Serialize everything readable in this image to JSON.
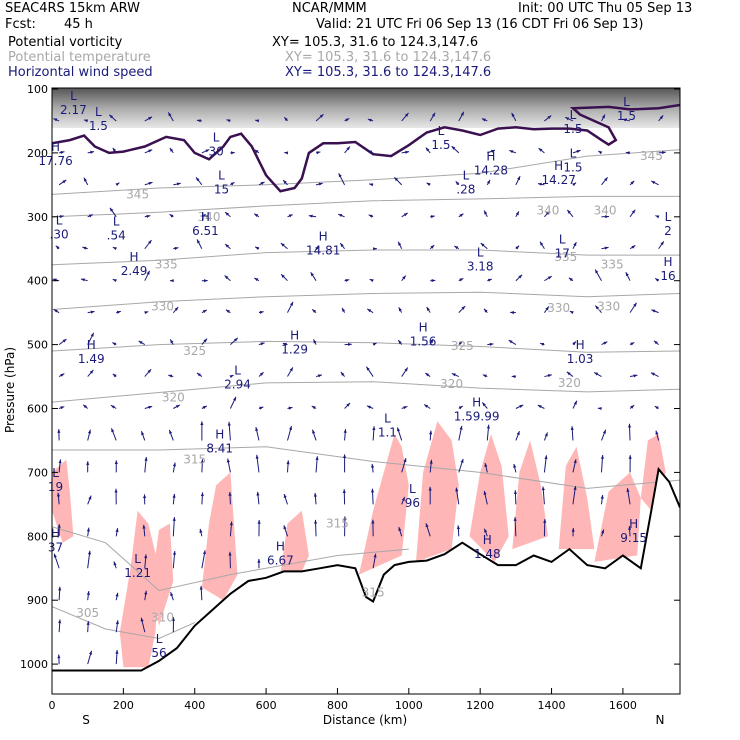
{
  "header": {
    "model": "SEAC4RS 15km ARW",
    "org": "NCAR/MMM",
    "init": "Init: 00 UTC Thu 05 Sep 13",
    "fcst_label": "Fcst:",
    "fcst_value": "45 h",
    "valid": "Valid: 21 UTC Fri 06 Sep 13 (16 CDT Fri 06 Sep 13)"
  },
  "fields": [
    {
      "name": "Potential vorticity",
      "xy": "XY= 105.3, 31.6 to 124.3,147.6",
      "color": "#000000"
    },
    {
      "name": "Potential temperature",
      "xy": "XY= 105.3, 31.6 to 124.3,147.6",
      "color": "#a8a8a8"
    },
    {
      "name": "Horizontal wind speed",
      "xy": "XY= 105.3, 31.6 to 124.3,147.6",
      "color": "#1a1a7a"
    }
  ],
  "colors": {
    "theta": "#a8a8a8",
    "pv_fill": "#ffb6b6",
    "pv_line": "#3a1050",
    "wind": "#1a1a7a",
    "terrain": "#000000"
  },
  "chart_data": {
    "type": "cross-section",
    "xlabel": "Distance (km)",
    "ylabel": "Pressure (hPa)",
    "xlim": [
      0,
      1760
    ],
    "ylim": [
      1050,
      100
    ],
    "x_ticks": [
      0,
      200,
      400,
      600,
      800,
      1000,
      1200,
      1400,
      1600
    ],
    "x_tick_labels": [
      "0",
      "200",
      "400",
      "600",
      "800",
      "1000",
      "1200",
      "1400",
      "1600"
    ],
    "y_ticks": [
      100,
      200,
      300,
      400,
      500,
      600,
      700,
      800,
      900,
      1000
    ],
    "y_tick_labels": [
      "100",
      "200",
      "300",
      "400",
      "500",
      "600",
      "700",
      "800",
      "900",
      "1000"
    ],
    "left_end_label": "S",
    "right_end_label": "N",
    "terrain": [
      [
        0,
        1010
      ],
      [
        50,
        1010
      ],
      [
        100,
        1010
      ],
      [
        200,
        1010
      ],
      [
        250,
        1010
      ],
      [
        300,
        995
      ],
      [
        350,
        975
      ],
      [
        400,
        940
      ],
      [
        450,
        915
      ],
      [
        500,
        890
      ],
      [
        550,
        870
      ],
      [
        600,
        865
      ],
      [
        650,
        855
      ],
      [
        700,
        855
      ],
      [
        750,
        850
      ],
      [
        800,
        845
      ],
      [
        850,
        850
      ],
      [
        880,
        895
      ],
      [
        900,
        902
      ],
      [
        930,
        860
      ],
      [
        960,
        845
      ],
      [
        1000,
        840
      ],
      [
        1050,
        838
      ],
      [
        1100,
        828
      ],
      [
        1150,
        810
      ],
      [
        1200,
        828
      ],
      [
        1250,
        845
      ],
      [
        1300,
        845
      ],
      [
        1350,
        830
      ],
      [
        1400,
        840
      ],
      [
        1450,
        820
      ],
      [
        1500,
        845
      ],
      [
        1550,
        850
      ],
      [
        1600,
        830
      ],
      [
        1650,
        850
      ],
      [
        1680,
        758
      ],
      [
        1700,
        695
      ],
      [
        1730,
        715
      ],
      [
        1760,
        755
      ]
    ],
    "theta_isentropes": [
      {
        "label": "345",
        "value": 345,
        "points": [
          [
            0,
            265
          ],
          [
            300,
            255
          ],
          [
            600,
            250
          ],
          [
            900,
            242
          ],
          [
            1200,
            232
          ],
          [
            1500,
            205
          ],
          [
            1760,
            195
          ]
        ]
      },
      {
        "label": "340",
        "value": 340,
        "points": [
          [
            0,
            300
          ],
          [
            300,
            293
          ],
          [
            600,
            283
          ],
          [
            900,
            275
          ],
          [
            1200,
            272
          ],
          [
            1500,
            268
          ],
          [
            1760,
            268
          ]
        ]
      },
      {
        "label": "335",
        "value": 335,
        "points": [
          [
            0,
            375
          ],
          [
            300,
            368
          ],
          [
            600,
            356
          ],
          [
            900,
            352
          ],
          [
            1200,
            352
          ],
          [
            1500,
            360
          ],
          [
            1760,
            360
          ]
        ]
      },
      {
        "label": "330",
        "value": 330,
        "points": [
          [
            0,
            445
          ],
          [
            300,
            433
          ],
          [
            600,
            425
          ],
          [
            900,
            420
          ],
          [
            1200,
            418
          ],
          [
            1500,
            425
          ],
          [
            1760,
            420
          ]
        ]
      },
      {
        "label": "325",
        "value": 325,
        "points": [
          [
            0,
            510
          ],
          [
            300,
            500
          ],
          [
            600,
            495
          ],
          [
            900,
            497
          ],
          [
            1200,
            503
          ],
          [
            1500,
            512
          ],
          [
            1760,
            510
          ]
        ]
      },
      {
        "label": "320",
        "value": 320,
        "points": [
          [
            0,
            590
          ],
          [
            300,
            575
          ],
          [
            600,
            560
          ],
          [
            900,
            558
          ],
          [
            1200,
            568
          ],
          [
            1500,
            574
          ],
          [
            1760,
            570
          ]
        ]
      },
      {
        "label": "315",
        "value": 315,
        "points": [
          [
            0,
            665
          ],
          [
            300,
            665
          ],
          [
            600,
            660
          ],
          [
            900,
            683
          ],
          [
            1200,
            700
          ],
          [
            1500,
            725
          ],
          [
            1760,
            712
          ]
        ]
      },
      {
        "label": "310",
        "value": 310,
        "points": [
          [
            0,
            785
          ],
          [
            150,
            810
          ],
          [
            300,
            885
          ],
          [
            500,
            860
          ],
          [
            800,
            830
          ],
          [
            1000,
            820
          ]
        ]
      },
      {
        "label": "305",
        "value": 305,
        "points": [
          [
            0,
            910
          ],
          [
            150,
            945
          ],
          [
            300,
            960
          ],
          [
            400,
            935
          ]
        ]
      }
    ],
    "theta_labels": [
      {
        "text": "345",
        "x": 240,
        "y": 265
      },
      {
        "text": "340",
        "x": 440,
        "y": 300
      },
      {
        "text": "340",
        "x": 1390,
        "y": 290
      },
      {
        "text": "340",
        "x": 1550,
        "y": 290
      },
      {
        "text": "345",
        "x": 1680,
        "y": 205
      },
      {
        "text": "335",
        "x": 320,
        "y": 375
      },
      {
        "text": "335",
        "x": 1440,
        "y": 363
      },
      {
        "text": "335",
        "x": 1570,
        "y": 375
      },
      {
        "text": "330",
        "x": 310,
        "y": 440
      },
      {
        "text": "330",
        "x": 1420,
        "y": 443
      },
      {
        "text": "330",
        "x": 1560,
        "y": 440
      },
      {
        "text": "325",
        "x": 400,
        "y": 510
      },
      {
        "text": "325",
        "x": 1150,
        "y": 502
      },
      {
        "text": "320",
        "x": 340,
        "y": 583
      },
      {
        "text": "320",
        "x": 1120,
        "y": 562
      },
      {
        "text": "320",
        "x": 1450,
        "y": 560
      },
      {
        "text": "315",
        "x": 400,
        "y": 680
      },
      {
        "text": "315",
        "x": 800,
        "y": 780
      },
      {
        "text": "315",
        "x": 900,
        "y": 888
      },
      {
        "text": "310",
        "x": 310,
        "y": 927
      },
      {
        "text": "305",
        "x": 100,
        "y": 920
      }
    ],
    "pv_2pvu_contour": [
      [
        0,
        185
      ],
      [
        50,
        180
      ],
      [
        90,
        173
      ],
      [
        120,
        190
      ],
      [
        160,
        200
      ],
      [
        200,
        198
      ],
      [
        260,
        190
      ],
      [
        320,
        175
      ],
      [
        370,
        180
      ],
      [
        400,
        200
      ],
      [
        440,
        210
      ],
      [
        480,
        190
      ],
      [
        500,
        175
      ],
      [
        530,
        170
      ],
      [
        560,
        190
      ],
      [
        600,
        235
      ],
      [
        640,
        260
      ],
      [
        680,
        255
      ],
      [
        700,
        240
      ],
      [
        720,
        200
      ],
      [
        760,
        185
      ],
      [
        800,
        185
      ],
      [
        850,
        183
      ],
      [
        900,
        202
      ],
      [
        950,
        205
      ],
      [
        1000,
        188
      ],
      [
        1050,
        168
      ],
      [
        1100,
        160
      ],
      [
        1150,
        165
      ],
      [
        1200,
        172
      ],
      [
        1250,
        162
      ],
      [
        1300,
        160
      ],
      [
        1350,
        163
      ],
      [
        1400,
        162
      ],
      [
        1450,
        162
      ],
      [
        1500,
        165
      ],
      [
        1540,
        180
      ],
      [
        1560,
        187
      ],
      [
        1580,
        180
      ],
      [
        1560,
        160
      ],
      [
        1520,
        150
      ],
      [
        1480,
        140
      ],
      [
        1460,
        130
      ],
      [
        1560,
        128
      ],
      [
        1620,
        132
      ],
      [
        1700,
        130
      ],
      [
        1760,
        125
      ]
    ],
    "pv_lower_regions": [
      [
        [
          0,
          700
        ],
        [
          40,
          680
        ],
        [
          50,
          730
        ],
        [
          60,
          800
        ],
        [
          30,
          810
        ],
        [
          0,
          760
        ]
      ],
      [
        [
          190,
          950
        ],
        [
          220,
          850
        ],
        [
          240,
          760
        ],
        [
          270,
          780
        ],
        [
          300,
          850
        ],
        [
          290,
          950
        ],
        [
          270,
          1005
        ],
        [
          200,
          1005
        ]
      ],
      [
        [
          280,
          870
        ],
        [
          300,
          790
        ],
        [
          330,
          780
        ],
        [
          340,
          870
        ],
        [
          300,
          940
        ]
      ],
      [
        [
          420,
          880
        ],
        [
          440,
          780
        ],
        [
          460,
          720
        ],
        [
          500,
          700
        ],
        [
          520,
          860
        ],
        [
          480,
          900
        ]
      ],
      [
        [
          640,
          860
        ],
        [
          660,
          780
        ],
        [
          700,
          760
        ],
        [
          720,
          830
        ],
        [
          700,
          855
        ]
      ],
      [
        [
          860,
          860
        ],
        [
          900,
          760
        ],
        [
          930,
          700
        ],
        [
          960,
          640
        ],
        [
          980,
          660
        ],
        [
          1000,
          720
        ],
        [
          980,
          830
        ],
        [
          940,
          840
        ]
      ],
      [
        [
          1020,
          840
        ],
        [
          1040,
          700
        ],
        [
          1080,
          620
        ],
        [
          1120,
          650
        ],
        [
          1140,
          720
        ],
        [
          1120,
          820
        ]
      ],
      [
        [
          1170,
          800
        ],
        [
          1200,
          700
        ],
        [
          1230,
          640
        ],
        [
          1260,
          690
        ],
        [
          1280,
          800
        ],
        [
          1240,
          840
        ]
      ],
      [
        [
          1290,
          820
        ],
        [
          1310,
          700
        ],
        [
          1340,
          650
        ],
        [
          1370,
          720
        ],
        [
          1390,
          800
        ]
      ],
      [
        [
          1420,
          820
        ],
        [
          1440,
          690
        ],
        [
          1470,
          660
        ],
        [
          1500,
          740
        ],
        [
          1520,
          820
        ]
      ],
      [
        [
          1520,
          840
        ],
        [
          1560,
          730
        ],
        [
          1620,
          700
        ],
        [
          1650,
          740
        ],
        [
          1640,
          830
        ]
      ],
      [
        [
          1650,
          740
        ],
        [
          1670,
          650
        ],
        [
          1700,
          640
        ],
        [
          1720,
          700
        ],
        [
          1680,
          760
        ]
      ]
    ],
    "hl_markers": [
      {
        "sym": "H",
        "val": "17.76",
        "x": 10,
        "y": 200
      },
      {
        "sym": "L",
        "val": "2.17",
        "x": 60,
        "y": 120
      },
      {
        "sym": "L",
        "val": "1.5",
        "x": 130,
        "y": 145
      },
      {
        "sym": "L",
        "val": "30",
        "x": 460,
        "y": 185
      },
      {
        "sym": "L",
        "val": "15",
        "x": 475,
        "y": 245
      },
      {
        "sym": "H",
        "val": "6.51",
        "x": 430,
        "y": 310
      },
      {
        "sym": "L",
        "val": ".30",
        "x": 20,
        "y": 315
      },
      {
        "sym": "L",
        "val": ".54",
        "x": 180,
        "y": 317
      },
      {
        "sym": "H",
        "val": "2.49",
        "x": 230,
        "y": 372
      },
      {
        "sym": "H",
        "val": "14.81",
        "x": 760,
        "y": 340
      },
      {
        "sym": "H",
        "val": "14.28",
        "x": 1230,
        "y": 215
      },
      {
        "sym": "L",
        "val": ".28",
        "x": 1160,
        "y": 245
      },
      {
        "sym": "L",
        "val": "1.5",
        "x": 1090,
        "y": 175
      },
      {
        "sym": "H",
        "val": "14.27",
        "x": 1420,
        "y": 230
      },
      {
        "sym": "L",
        "val": "1.5",
        "x": 1460,
        "y": 150
      },
      {
        "sym": "L",
        "val": "1.5",
        "x": 1610,
        "y": 130
      },
      {
        "sym": "L",
        "val": "1.5",
        "x": 1460,
        "y": 210
      },
      {
        "sym": "L",
        "val": "17",
        "x": 1430,
        "y": 345
      },
      {
        "sym": "L",
        "val": "3.18",
        "x": 1200,
        "y": 365
      },
      {
        "sym": "H",
        "val": "1.49",
        "x": 110,
        "y": 510
      },
      {
        "sym": "H",
        "val": "1.29",
        "x": 680,
        "y": 495
      },
      {
        "sym": "L",
        "val": "2.94",
        "x": 520,
        "y": 550
      },
      {
        "sym": "H",
        "val": "1.56",
        "x": 1040,
        "y": 483
      },
      {
        "sym": "H",
        "val": "1.03",
        "x": 1480,
        "y": 510
      },
      {
        "sym": "H",
        "val": "1.59.99",
        "x": 1190,
        "y": 600
      },
      {
        "sym": "L",
        "val": "1.1",
        "x": 940,
        "y": 625
      },
      {
        "sym": "H",
        "val": "8.41",
        "x": 470,
        "y": 650
      },
      {
        "sym": "L",
        "val": "96",
        "x": 1010,
        "y": 735
      },
      {
        "sym": "L",
        "val": "1.21",
        "x": 240,
        "y": 845
      },
      {
        "sym": "H",
        "val": "6.67",
        "x": 640,
        "y": 825
      },
      {
        "sym": "H",
        "val": "1.48",
        "x": 1220,
        "y": 815
      },
      {
        "sym": "H",
        "val": "9.15",
        "x": 1630,
        "y": 790
      },
      {
        "sym": "L",
        "val": "56",
        "x": 300,
        "y": 970
      },
      {
        "sym": "L",
        "val": "19",
        "x": 10,
        "y": 710
      },
      {
        "sym": "H",
        "val": "37",
        "x": 10,
        "y": 805
      },
      {
        "sym": "H",
        "val": "16",
        "x": 1730,
        "y": 380
      },
      {
        "sym": "L",
        "val": "2",
        "x": 1740,
        "y": 310
      }
    ],
    "wind_vectors": {
      "x_spacing_km": 80,
      "pressure_levels": [
        150,
        200,
        250,
        300,
        350,
        400,
        450,
        500,
        550,
        600,
        650,
        700,
        750,
        800,
        850,
        900,
        950,
        1000
      ],
      "units": "m/s"
    }
  }
}
